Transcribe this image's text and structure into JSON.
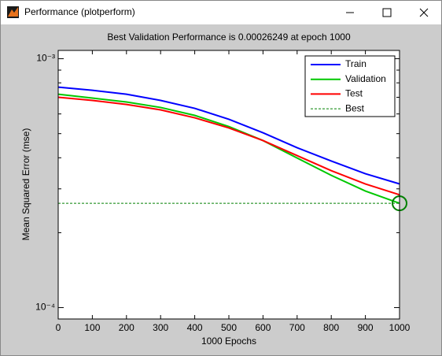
{
  "window": {
    "title": "Performance (plotperform)"
  },
  "chart_data": {
    "type": "line",
    "log_y": true,
    "title": "Best Validation Performance is 0.00026249 at epoch 1000",
    "xlabel": "1000 Epochs",
    "ylabel": "Mean Squared Error  (mse)",
    "x": [
      0,
      100,
      200,
      300,
      400,
      500,
      600,
      700,
      800,
      900,
      1000
    ],
    "series": [
      {
        "name": "Train",
        "color": "#0000ff",
        "values": [
          0.000769,
          0.000747,
          0.00072,
          0.00068,
          0.000632,
          0.000571,
          0.000504,
          0.000439,
          0.000388,
          0.000345,
          0.000314
        ]
      },
      {
        "name": "Validation",
        "color": "#00c800",
        "values": [
          0.00072,
          0.000695,
          0.00067,
          0.000637,
          0.000592,
          0.000534,
          0.000469,
          0.000399,
          0.00034,
          0.000294,
          0.00026249
        ]
      },
      {
        "name": "Test",
        "color": "#ff0000",
        "values": [
          0.0007,
          0.00068,
          0.000655,
          0.000623,
          0.000579,
          0.000527,
          0.000469,
          0.000408,
          0.000355,
          0.000314,
          0.000284
        ]
      }
    ],
    "best": {
      "name": "Best",
      "color": "#008000",
      "x": 1000,
      "y": 0.00026249
    },
    "xlim": [
      0,
      1000
    ],
    "xticks": [
      0,
      100,
      200,
      300,
      400,
      500,
      600,
      700,
      800,
      900,
      1000
    ],
    "ylim": [
      9e-05,
      0.00108
    ],
    "yticks": [
      {
        "value": 0.0001,
        "label": "10⁻⁴"
      },
      {
        "value": 0.001,
        "label": "10⁻³"
      }
    ],
    "yminorticks": [
      0.0002,
      0.0003,
      0.0004,
      0.0005,
      0.0006,
      0.0007,
      0.0008,
      0.0009
    ],
    "legend": "upper right"
  }
}
